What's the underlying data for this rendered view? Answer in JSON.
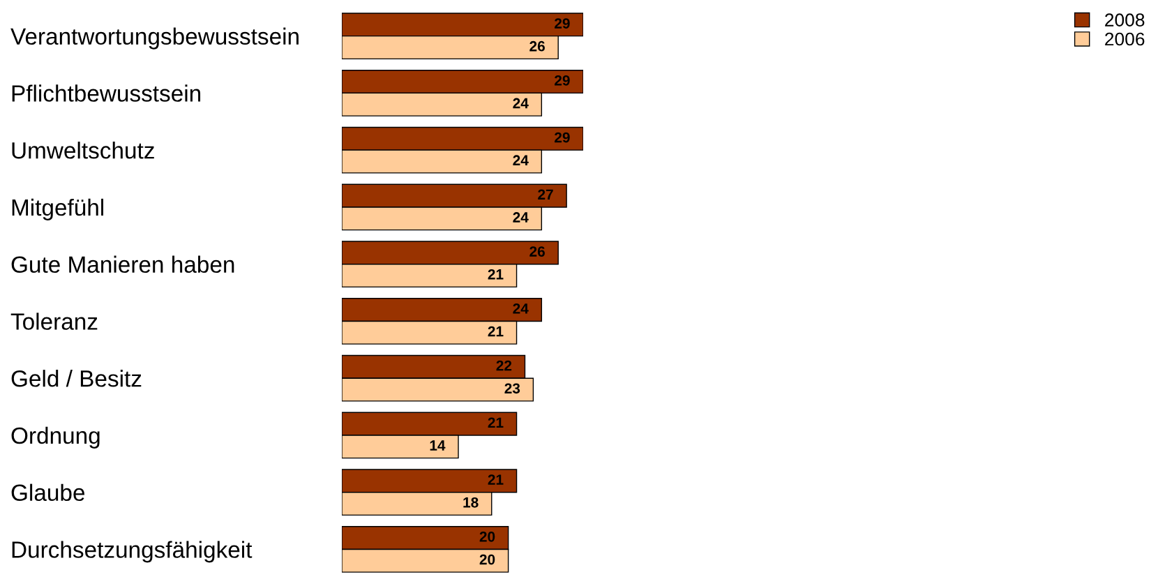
{
  "chart_data": {
    "type": "bar",
    "orientation": "horizontal",
    "categories": [
      "Verantwortungsbewusstsein",
      "Pflichtbewusstsein",
      "Umweltschutz",
      "Mitgefühl",
      "Gute Manieren haben",
      "Toleranz",
      "Geld / Besitz",
      "Ordnung",
      "Glaube",
      "Durchsetzungsfähigkeit"
    ],
    "series": [
      {
        "name": "2008",
        "color": "#993300",
        "values": [
          29,
          29,
          29,
          27,
          26,
          24,
          22,
          21,
          21,
          20
        ]
      },
      {
        "name": "2006",
        "color": "#ffcc99",
        "values": [
          26,
          24,
          24,
          24,
          21,
          21,
          23,
          14,
          18,
          20
        ]
      }
    ],
    "data_labels": true,
    "tick_labels": "y",
    "legend": "top right",
    "grid": false
  }
}
